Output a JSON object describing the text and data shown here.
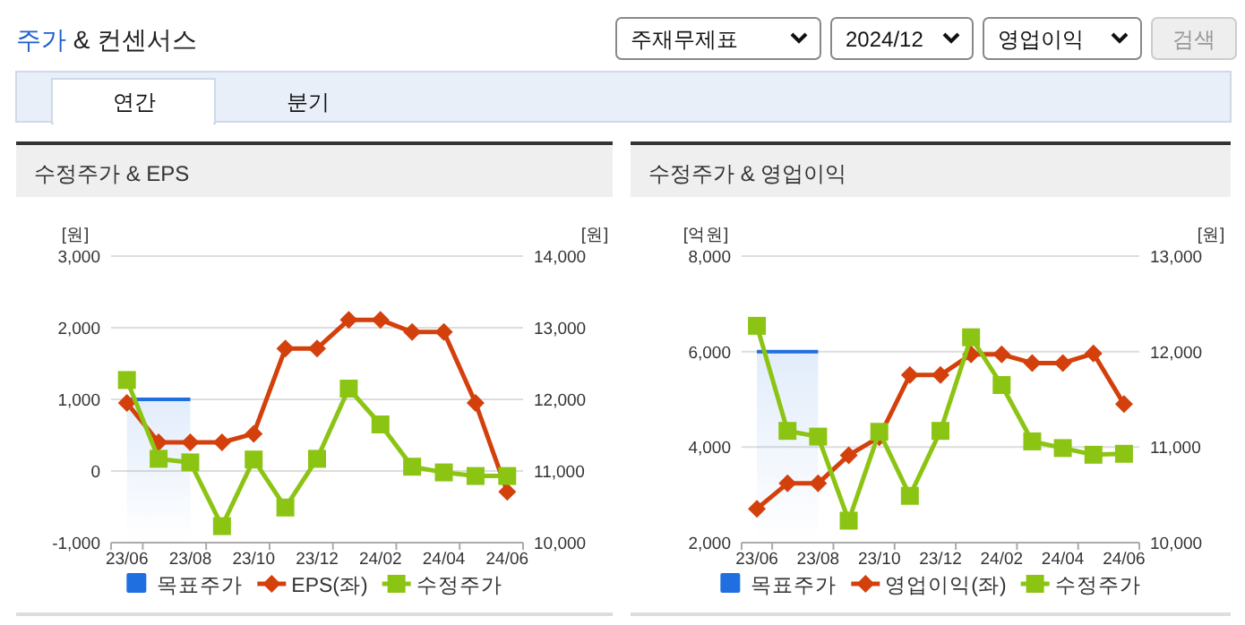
{
  "chart_data": [
    {
      "type": "other",
      "title": "주가 & 컨센서스",
      "annotations": [
        "주재무제표",
        "2024/12",
        "영업이익",
        "검색",
        "연간",
        "분기"
      ]
    },
    {
      "type": "line",
      "title": "수정주가 & EPS",
      "ylabel": "[원]",
      "y2label": "[원]",
      "categories": [
        "23/06",
        null,
        "23/08",
        null,
        "23/10",
        null,
        "23/12",
        null,
        "24/02",
        null,
        "24/04",
        null,
        "24/06"
      ],
      "series": [
        {
          "name": "목표주가",
          "type": "area",
          "axis": "y2",
          "color": "#1f6fe0",
          "values": [
            12000,
            12000,
            12000,
            null,
            null,
            null,
            null,
            null,
            null,
            null,
            null,
            null,
            null
          ]
        },
        {
          "name": "EPS(좌)",
          "type": "line",
          "marker": "diamond",
          "color": "#d4400c",
          "values": [
            950,
            400,
            400,
            400,
            520,
            1710,
            1710,
            2110,
            2110,
            1940,
            1940,
            950,
            -290
          ]
        },
        {
          "name": "수정주가",
          "type": "line",
          "axis": "y2",
          "marker": "square",
          "color": "#8cc414",
          "values": [
            12270,
            11170,
            11120,
            10230,
            11160,
            10490,
            11170,
            12150,
            11650,
            11060,
            10980,
            10930,
            10930
          ]
        }
      ],
      "ylim": [
        -1000,
        3000
      ],
      "yticks": [
        {
          "value": -1000,
          "label": "-1,000"
        },
        0,
        {
          "value": 1000,
          "label": "1,000"
        },
        {
          "value": 2000,
          "label": "2,000"
        },
        {
          "value": 3000,
          "label": "3,000"
        }
      ],
      "y2lim": [
        10000,
        14000
      ],
      "y2ticks": [
        {
          "value": 10000,
          "label": "10,000"
        },
        {
          "value": 11000,
          "label": "11,000"
        },
        {
          "value": 12000,
          "label": "12,000"
        },
        {
          "value": 13000,
          "label": "13,000"
        },
        {
          "value": 14000,
          "label": "14,000"
        }
      ],
      "grid": "y",
      "legend": "bottom"
    },
    {
      "type": "line",
      "title": "수정주가 & 영업이익",
      "ylabel": "[억원]",
      "y2label": "[원]",
      "categories": [
        "23/06",
        null,
        "23/08",
        null,
        "23/10",
        null,
        "23/12",
        null,
        "24/02",
        null,
        "24/04",
        null,
        "24/06"
      ],
      "series": [
        {
          "name": "목표주가",
          "type": "area",
          "axis": "y2",
          "color": "#1f6fe0",
          "values": [
            12000,
            12000,
            12000,
            null,
            null,
            null,
            null,
            null,
            null,
            null,
            null,
            null,
            null
          ]
        },
        {
          "name": "영업이익(좌)",
          "type": "line",
          "marker": "diamond",
          "color": "#d4400c",
          "values": [
            2710,
            3240,
            3240,
            3830,
            4210,
            5510,
            5510,
            5940,
            5940,
            5760,
            5760,
            5960,
            4900
          ]
        },
        {
          "name": "수정주가",
          "type": "line",
          "axis": "y2",
          "marker": "square",
          "color": "#8cc414",
          "values": [
            12270,
            11170,
            11110,
            10230,
            11160,
            10490,
            11170,
            12150,
            11650,
            11060,
            10990,
            10920,
            10930
          ]
        }
      ],
      "ylim": [
        2000,
        8000
      ],
      "yticks": [
        {
          "value": 2000,
          "label": "2,000"
        },
        {
          "value": 4000,
          "label": "4,000"
        },
        {
          "value": 6000,
          "label": "6,000"
        },
        {
          "value": 8000,
          "label": "8,000"
        }
      ],
      "y2lim": [
        10000,
        13000
      ],
      "y2ticks": [
        {
          "value": 10000,
          "label": "10,000"
        },
        {
          "value": 11000,
          "label": "11,000"
        },
        {
          "value": 12000,
          "label": "12,000"
        },
        {
          "value": 13000,
          "label": "13,000"
        }
      ],
      "grid": "y",
      "legend": "bottom"
    }
  ]
}
